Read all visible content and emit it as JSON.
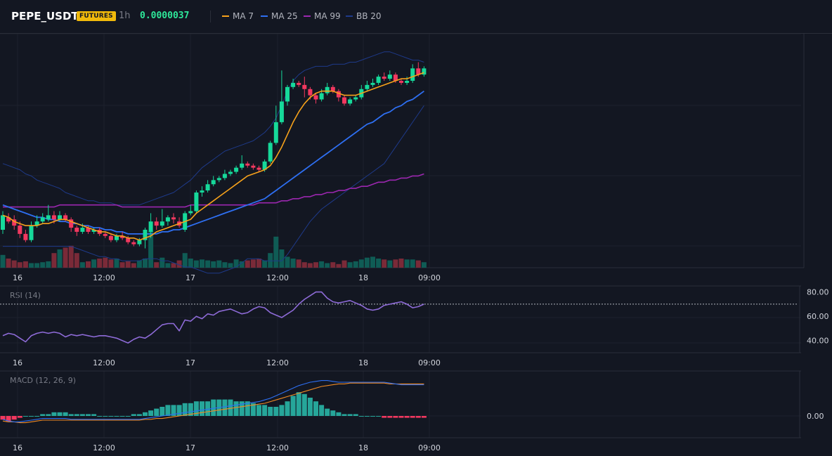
{
  "header": {
    "symbol": "PEPE_USDT",
    "badge": "FUTURES",
    "timeframe": "1h",
    "price": "0.0000037",
    "legend": [
      {
        "label": "MA 7",
        "color": "#f7a21b"
      },
      {
        "label": "MA 25",
        "color": "#2e6ff2"
      },
      {
        "label": "MA 99",
        "color": "#9c27b0"
      },
      {
        "label": "BB 20",
        "color": "#1e3a8a"
      }
    ]
  },
  "time_labels": [
    "16",
    "12:00",
    "17",
    "12:00",
    "18",
    "09:00"
  ],
  "colors": {
    "up": "#16d99a",
    "down": "#f2385f",
    "up_vol": "#0f5c55",
    "down_vol": "#7a2a38",
    "rsi": "#8e6bd8",
    "macd": "#2e6ff2",
    "signal": "#f08a24"
  },
  "panes": {
    "rsi": {
      "title": "RSI (14)",
      "ticks": [
        "80.00",
        "60.00",
        "40.00"
      ]
    },
    "macd": {
      "title": "MACD (12, 26, 9)",
      "ticks": [
        "0.00"
      ]
    }
  },
  "chart_data": [
    {
      "type": "candlestick",
      "x_labels": [
        "16",
        "12:00",
        "17",
        "12:00",
        "18",
        "09:00"
      ],
      "candles": [
        [
          0.48,
          0.55,
          0.46,
          0.57
        ],
        [
          0.54,
          0.52,
          0.51,
          0.56
        ],
        [
          0.53,
          0.5,
          0.48,
          0.55
        ],
        [
          0.5,
          0.46,
          0.44,
          0.52
        ],
        [
          0.46,
          0.43,
          0.42,
          0.48
        ],
        [
          0.43,
          0.5,
          0.42,
          0.52
        ],
        [
          0.5,
          0.52,
          0.49,
          0.55
        ],
        [
          0.52,
          0.54,
          0.51,
          0.56
        ],
        [
          0.53,
          0.55,
          0.52,
          0.6
        ],
        [
          0.55,
          0.53,
          0.51,
          0.57
        ],
        [
          0.53,
          0.55,
          0.52,
          0.57
        ],
        [
          0.55,
          0.53,
          0.52,
          0.56
        ],
        [
          0.53,
          0.49,
          0.47,
          0.54
        ],
        [
          0.49,
          0.47,
          0.45,
          0.5
        ],
        [
          0.47,
          0.49,
          0.46,
          0.51
        ],
        [
          0.49,
          0.47,
          0.46,
          0.5
        ],
        [
          0.47,
          0.48,
          0.46,
          0.49
        ],
        [
          0.48,
          0.46,
          0.45,
          0.49
        ],
        [
          0.46,
          0.45,
          0.44,
          0.47
        ],
        [
          0.45,
          0.43,
          0.42,
          0.46
        ],
        [
          0.43,
          0.45,
          0.42,
          0.46
        ],
        [
          0.45,
          0.44,
          0.43,
          0.47
        ],
        [
          0.44,
          0.42,
          0.41,
          0.45
        ],
        [
          0.42,
          0.41,
          0.4,
          0.43
        ],
        [
          0.41,
          0.43,
          0.4,
          0.44
        ],
        [
          0.43,
          0.48,
          0.39,
          0.49
        ],
        [
          0.47,
          0.52,
          0.44,
          0.56
        ],
        [
          0.52,
          0.5,
          0.48,
          0.54
        ],
        [
          0.5,
          0.52,
          0.49,
          0.58
        ],
        [
          0.52,
          0.54,
          0.5,
          0.55
        ],
        [
          0.54,
          0.53,
          0.51,
          0.56
        ],
        [
          0.52,
          0.5,
          0.49,
          0.54
        ],
        [
          0.48,
          0.56,
          0.47,
          0.57
        ],
        [
          0.56,
          0.57,
          0.55,
          0.6
        ],
        [
          0.57,
          0.66,
          0.56,
          0.67
        ],
        [
          0.66,
          0.67,
          0.64,
          0.69
        ],
        [
          0.67,
          0.7,
          0.66,
          0.72
        ],
        [
          0.7,
          0.72,
          0.69,
          0.74
        ],
        [
          0.72,
          0.73,
          0.71,
          0.74
        ],
        [
          0.73,
          0.75,
          0.72,
          0.77
        ],
        [
          0.75,
          0.76,
          0.74,
          0.77
        ],
        [
          0.76,
          0.78,
          0.75,
          0.79
        ],
        [
          0.78,
          0.8,
          0.77,
          0.84
        ],
        [
          0.8,
          0.79,
          0.78,
          0.81
        ],
        [
          0.79,
          0.78,
          0.77,
          0.8
        ],
        [
          0.78,
          0.77,
          0.76,
          0.79
        ],
        [
          0.77,
          0.81,
          0.76,
          0.82
        ],
        [
          0.81,
          0.9,
          0.8,
          0.91
        ],
        [
          0.9,
          1.0,
          0.89,
          1.08
        ],
        [
          1.0,
          1.1,
          0.99,
          1.25
        ],
        [
          1.1,
          1.17,
          1.08,
          1.18
        ],
        [
          1.17,
          1.19,
          1.16,
          1.21
        ],
        [
          1.19,
          1.18,
          1.17,
          1.2
        ],
        [
          1.18,
          1.16,
          1.12,
          1.22
        ],
        [
          1.16,
          1.13,
          1.11,
          1.17
        ],
        [
          1.13,
          1.11,
          1.09,
          1.14
        ],
        [
          1.11,
          1.14,
          1.1,
          1.16
        ],
        [
          1.14,
          1.17,
          1.13,
          1.19
        ],
        [
          1.17,
          1.15,
          1.14,
          1.18
        ],
        [
          1.15,
          1.12,
          1.1,
          1.16
        ],
        [
          1.12,
          1.09,
          1.08,
          1.13
        ],
        [
          1.09,
          1.11,
          1.08,
          1.12
        ],
        [
          1.11,
          1.12,
          1.1,
          1.13
        ],
        [
          1.12,
          1.16,
          1.11,
          1.18
        ],
        [
          1.16,
          1.18,
          1.15,
          1.2
        ],
        [
          1.18,
          1.19,
          1.17,
          1.21
        ],
        [
          1.19,
          1.22,
          1.18,
          1.23
        ],
        [
          1.22,
          1.21,
          1.2,
          1.24
        ],
        [
          1.21,
          1.23,
          1.2,
          1.25
        ],
        [
          1.23,
          1.2,
          1.19,
          1.24
        ],
        [
          1.2,
          1.19,
          1.18,
          1.21
        ],
        [
          1.19,
          1.2,
          1.18,
          1.22
        ],
        [
          1.2,
          1.26,
          1.19,
          1.28
        ],
        [
          1.26,
          1.23,
          1.22,
          1.29
        ],
        [
          1.23,
          1.26,
          1.22,
          1.27
        ]
      ],
      "volumes": [
        14,
        10,
        8,
        6,
        7,
        5,
        5,
        6,
        7,
        16,
        20,
        22,
        24,
        16,
        6,
        7,
        9,
        10,
        11,
        9,
        10,
        6,
        7,
        5,
        8,
        10,
        40,
        6,
        11,
        5,
        5,
        8,
        16,
        10,
        8,
        9,
        8,
        7,
        8,
        6,
        5,
        9,
        7,
        8,
        9,
        10,
        8,
        16,
        34,
        20,
        12,
        10,
        9,
        6,
        5,
        6,
        7,
        5,
        6,
        4,
        8,
        6,
        7,
        9,
        11,
        12,
        10,
        9,
        8,
        9,
        10,
        9,
        9,
        8,
        6
      ],
      "ma7": [
        0.55,
        0.54,
        0.52,
        0.51,
        0.5,
        0.5,
        0.5,
        0.51,
        0.51,
        0.52,
        0.53,
        0.53,
        0.52,
        0.51,
        0.5,
        0.49,
        0.48,
        0.47,
        0.47,
        0.46,
        0.45,
        0.45,
        0.44,
        0.44,
        0.43,
        0.44,
        0.45,
        0.47,
        0.48,
        0.49,
        0.5,
        0.51,
        0.52,
        0.53,
        0.56,
        0.58,
        0.6,
        0.62,
        0.64,
        0.66,
        0.68,
        0.7,
        0.72,
        0.74,
        0.75,
        0.76,
        0.77,
        0.79,
        0.83,
        0.88,
        0.94,
        1.0,
        1.05,
        1.09,
        1.12,
        1.14,
        1.15,
        1.15,
        1.15,
        1.14,
        1.13,
        1.13,
        1.13,
        1.14,
        1.15,
        1.16,
        1.17,
        1.18,
        1.19,
        1.2,
        1.21,
        1.21,
        1.22,
        1.23,
        1.24
      ],
      "ma25": [
        0.6,
        0.59,
        0.58,
        0.57,
        0.56,
        0.55,
        0.54,
        0.54,
        0.53,
        0.53,
        0.52,
        0.52,
        0.51,
        0.51,
        0.5,
        0.5,
        0.49,
        0.49,
        0.48,
        0.48,
        0.47,
        0.47,
        0.46,
        0.46,
        0.46,
        0.46,
        0.46,
        0.46,
        0.47,
        0.47,
        0.48,
        0.48,
        0.49,
        0.5,
        0.51,
        0.52,
        0.53,
        0.54,
        0.55,
        0.56,
        0.57,
        0.58,
        0.59,
        0.6,
        0.61,
        0.62,
        0.63,
        0.65,
        0.67,
        0.69,
        0.71,
        0.73,
        0.75,
        0.77,
        0.79,
        0.81,
        0.83,
        0.85,
        0.87,
        0.89,
        0.91,
        0.93,
        0.95,
        0.97,
        0.99,
        1.0,
        1.02,
        1.04,
        1.05,
        1.07,
        1.08,
        1.1,
        1.11,
        1.13,
        1.15
      ],
      "ma99": [
        0.59,
        0.59,
        0.59,
        0.59,
        0.59,
        0.59,
        0.59,
        0.59,
        0.59,
        0.59,
        0.6,
        0.6,
        0.6,
        0.6,
        0.6,
        0.6,
        0.6,
        0.6,
        0.6,
        0.6,
        0.6,
        0.59,
        0.59,
        0.59,
        0.59,
        0.59,
        0.59,
        0.59,
        0.59,
        0.59,
        0.59,
        0.59,
        0.59,
        0.6,
        0.6,
        0.6,
        0.6,
        0.6,
        0.6,
        0.6,
        0.6,
        0.6,
        0.6,
        0.6,
        0.6,
        0.61,
        0.61,
        0.61,
        0.61,
        0.62,
        0.62,
        0.63,
        0.63,
        0.64,
        0.64,
        0.65,
        0.65,
        0.66,
        0.66,
        0.67,
        0.67,
        0.68,
        0.68,
        0.69,
        0.69,
        0.7,
        0.71,
        0.71,
        0.72,
        0.72,
        0.73,
        0.73,
        0.74,
        0.74,
        0.75
      ],
      "bb_upper": [
        0.8,
        0.79,
        0.78,
        0.77,
        0.75,
        0.74,
        0.72,
        0.71,
        0.7,
        0.69,
        0.68,
        0.66,
        0.65,
        0.64,
        0.63,
        0.62,
        0.62,
        0.61,
        0.61,
        0.61,
        0.6,
        0.6,
        0.6,
        0.6,
        0.6,
        0.61,
        0.62,
        0.63,
        0.64,
        0.65,
        0.66,
        0.68,
        0.7,
        0.72,
        0.75,
        0.78,
        0.8,
        0.82,
        0.84,
        0.86,
        0.87,
        0.88,
        0.89,
        0.9,
        0.91,
        0.93,
        0.95,
        0.98,
        1.02,
        1.08,
        1.15,
        1.2,
        1.23,
        1.25,
        1.26,
        1.27,
        1.27,
        1.27,
        1.28,
        1.28,
        1.28,
        1.29,
        1.29,
        1.3,
        1.31,
        1.32,
        1.33,
        1.34,
        1.34,
        1.33,
        1.32,
        1.31,
        1.3,
        1.3,
        1.29
      ],
      "bb_lower": [
        0.4,
        0.4,
        0.4,
        0.4,
        0.4,
        0.4,
        0.4,
        0.4,
        0.4,
        0.4,
        0.4,
        0.4,
        0.4,
        0.39,
        0.38,
        0.37,
        0.36,
        0.35,
        0.35,
        0.34,
        0.34,
        0.33,
        0.33,
        0.33,
        0.33,
        0.34,
        0.34,
        0.34,
        0.33,
        0.33,
        0.32,
        0.31,
        0.3,
        0.3,
        0.29,
        0.28,
        0.27,
        0.27,
        0.27,
        0.28,
        0.29,
        0.3,
        0.32,
        0.34,
        0.34,
        0.34,
        0.33,
        0.33,
        0.33,
        0.33,
        0.36,
        0.4,
        0.44,
        0.48,
        0.52,
        0.55,
        0.58,
        0.6,
        0.62,
        0.64,
        0.66,
        0.68,
        0.7,
        0.72,
        0.74,
        0.76,
        0.78,
        0.8,
        0.84,
        0.88,
        0.92,
        0.96,
        1.0,
        1.04,
        1.08
      ]
    },
    {
      "type": "line",
      "title": "RSI (14)",
      "ylim": [
        30,
        85
      ],
      "y_ticks": [
        80,
        60,
        40
      ],
      "reference_line": 70,
      "x_labels": [
        "16",
        "12:00",
        "17",
        "12:00",
        "18",
        "09:00"
      ],
      "values": [
        44,
        46,
        45,
        42,
        39,
        44,
        46,
        47,
        46,
        47,
        46,
        43,
        45,
        44,
        45,
        44,
        43,
        44,
        44,
        43,
        42,
        40,
        38,
        41,
        43,
        42,
        45,
        49,
        53,
        54,
        54,
        48,
        57,
        56,
        60,
        58,
        62,
        61,
        64,
        65,
        66,
        64,
        62,
        63,
        66,
        68,
        67,
        63,
        61,
        59,
        62,
        65,
        70,
        74,
        77,
        80,
        80,
        75,
        72,
        71,
        72,
        73,
        71,
        69,
        66,
        65,
        66,
        69,
        70,
        71,
        72,
        70,
        67,
        68,
        70
      ],
      "line_color": "#8e6bd8"
    },
    {
      "type": "line",
      "title": "MACD (12, 26, 9)",
      "y_ticks": [
        0
      ],
      "x_labels": [
        "16",
        "12:00",
        "17",
        "12:00",
        "18",
        "09:00"
      ],
      "series": [
        {
          "values": [
            -4,
            -6,
            -7,
            -7,
            -6,
            -5,
            -4,
            -3,
            -3,
            -3,
            -3,
            -3,
            -4,
            -4,
            -4,
            -4,
            -4,
            -4,
            -4,
            -4,
            -4,
            -4,
            -4,
            -4,
            -4,
            -3,
            -2,
            -1,
            0,
            1,
            2,
            3,
            4,
            5,
            6,
            7,
            8,
            9,
            10,
            11,
            12,
            13,
            14,
            15,
            16,
            17,
            19,
            21,
            24,
            27,
            30,
            33,
            36,
            38,
            40,
            41,
            42,
            42,
            41,
            40,
            40,
            40,
            40,
            40,
            40,
            40,
            40,
            40,
            39,
            38,
            37,
            37,
            37,
            37,
            37
          ]
        },
        {
          "values": [
            -6,
            -7,
            -7,
            -8,
            -8,
            -7,
            -6,
            -5,
            -5,
            -5,
            -5,
            -5,
            -5,
            -5,
            -5,
            -5,
            -5,
            -5,
            -5,
            -5,
            -5,
            -5,
            -5,
            -5,
            -5,
            -4,
            -4,
            -3,
            -3,
            -2,
            -1,
            0,
            1,
            2,
            3,
            4,
            5,
            6,
            7,
            8,
            9,
            10,
            11,
            12,
            13,
            14,
            15,
            17,
            19,
            21,
            23,
            25,
            27,
            29,
            31,
            33,
            35,
            36,
            37,
            38,
            38,
            39,
            39,
            39,
            39,
            39,
            39,
            39,
            38,
            38,
            38,
            38,
            38,
            38,
            38
          ]
        }
      ],
      "histogram": [
        -2,
        -3,
        -2,
        -1,
        0,
        0,
        0,
        1,
        1,
        2,
        2,
        2,
        1,
        1,
        1,
        1,
        1,
        0,
        0,
        0,
        0,
        0,
        0,
        1,
        1,
        2,
        3,
        4,
        5,
        6,
        6,
        6,
        7,
        7,
        8,
        8,
        8,
        9,
        9,
        9,
        9,
        8,
        8,
        8,
        7,
        6,
        6,
        5,
        5,
        6,
        8,
        11,
        13,
        12,
        10,
        8,
        6,
        4,
        3,
        2,
        1,
        1,
        1,
        0,
        0,
        0,
        0,
        -1,
        -1,
        -1,
        -1,
        -1,
        -1,
        -1,
        -1
      ]
    }
  ]
}
